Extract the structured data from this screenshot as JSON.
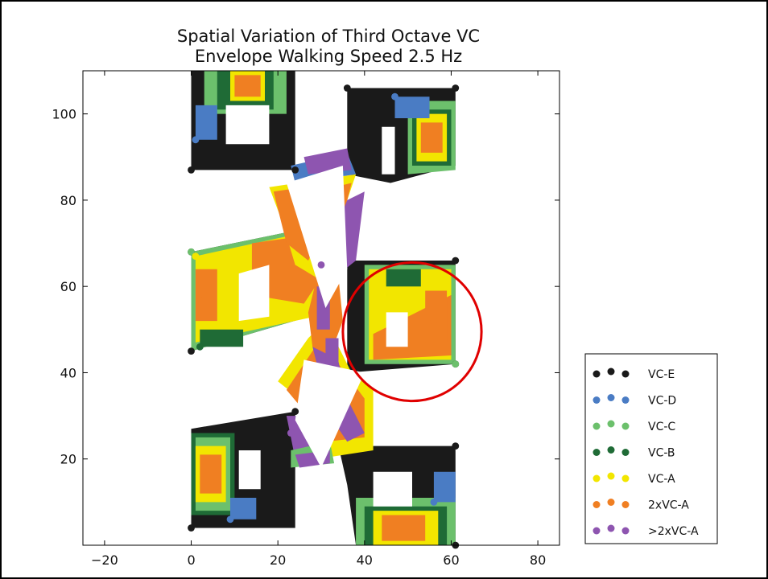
{
  "chart_data": {
    "type": "scatter",
    "title": [
      "Spatial Variation of Third Octave VC",
      "Envelope Walking Speed 2.5 Hz"
    ],
    "xlabel": "",
    "ylabel": "",
    "xlim": [
      -25,
      85
    ],
    "ylim": [
      0,
      110
    ],
    "x_ticks": [
      -20,
      0,
      20,
      40,
      60,
      80
    ],
    "y_ticks": [
      20,
      40,
      60,
      80,
      100
    ],
    "x_tick_labels": [
      "−20",
      "0",
      "20",
      "40",
      "60",
      "80"
    ],
    "y_tick_labels": [
      "20",
      "40",
      "60",
      "80",
      "100"
    ],
    "grid": false,
    "legend_position": "lower-right",
    "series": [
      {
        "name": "VC-E",
        "color": "#1a1a1a"
      },
      {
        "name": "VC-D",
        "color": "#4a7cc4"
      },
      {
        "name": "VC-C",
        "color": "#6cc06c"
      },
      {
        "name": "VC-B",
        "color": "#1f6b36"
      },
      {
        "name": "VC-A",
        "color": "#f2e600"
      },
      {
        "name": "2xVC-A",
        "color": "#f07f22"
      },
      {
        "name": ">2xVC-A",
        "color": "#8e55b0"
      }
    ],
    "annotation": {
      "type": "circle",
      "color": "#e00000",
      "center": [
        51,
        49.5
      ],
      "radius": 16
    }
  }
}
